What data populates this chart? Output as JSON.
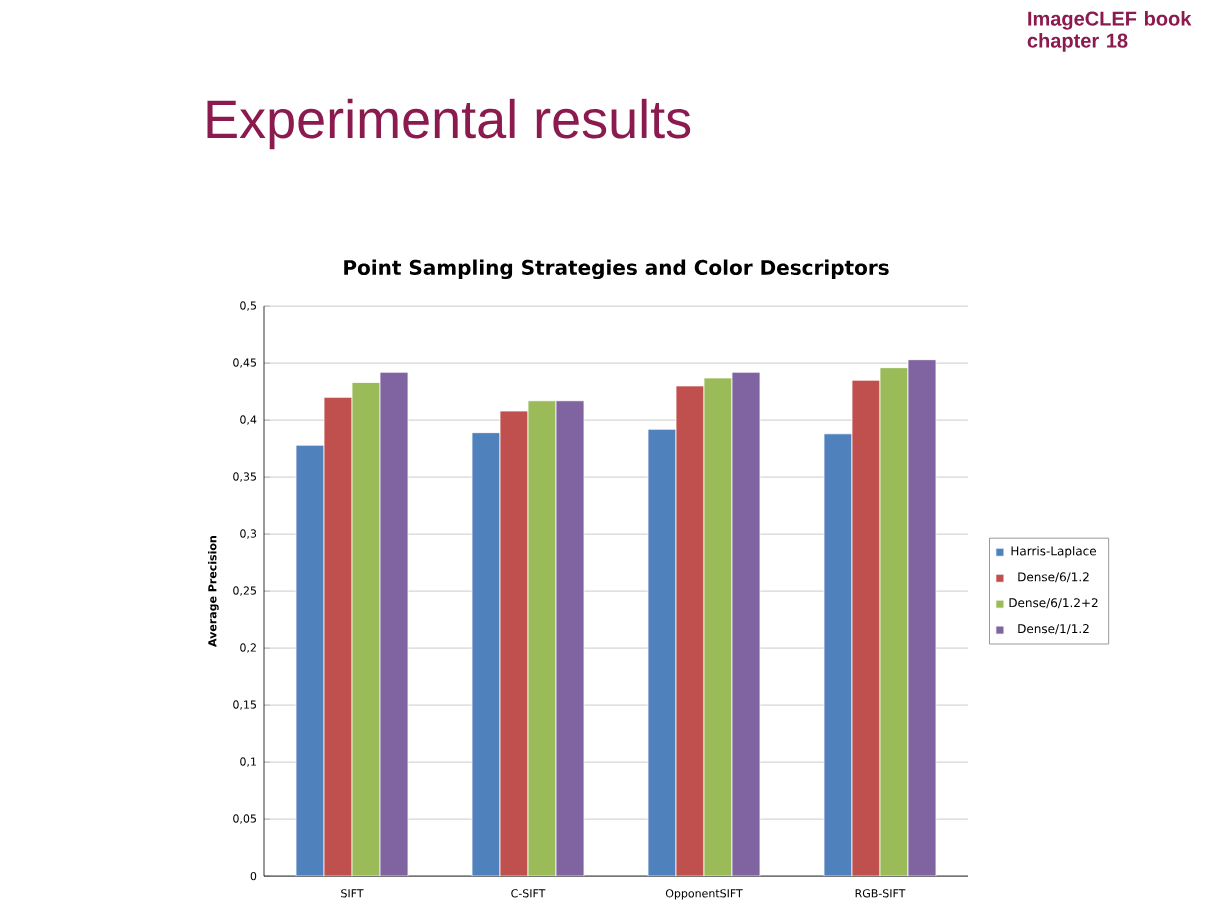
{
  "chart_data": {
    "type": "bar",
    "title": "Point Sampling Strategies and Color Descriptors",
    "ylabel": "Average Precision",
    "annotations": [
      "Experimental results",
      "ImageCLEF book chapter 18"
    ],
    "categories": [
      "SIFT",
      "C-SIFT",
      "OpponentSIFT",
      "RGB-SIFT"
    ],
    "series": [
      {
        "name": "Harris-Laplace",
        "color": "#4f81bd",
        "values": [
          0.378,
          0.389,
          0.392,
          0.388
        ]
      },
      {
        "name": "Dense/6/1.2",
        "color": "#c0504d",
        "values": [
          0.42,
          0.408,
          0.43,
          0.435
        ]
      },
      {
        "name": "Dense/6/1.2+2",
        "color": "#9bbb59",
        "values": [
          0.433,
          0.417,
          0.437,
          0.446
        ]
      },
      {
        "name": "Dense/1/1.2",
        "color": "#8064a2",
        "values": [
          0.442,
          0.417,
          0.442,
          0.453
        ]
      }
    ],
    "ylim": [
      0,
      0.5
    ],
    "yticks": [
      0,
      {
        "value": 0.05,
        "label": "0,05"
      },
      {
        "value": 0.1,
        "label": "0,1"
      },
      {
        "value": 0.15,
        "label": "0,15"
      },
      {
        "value": 0.2,
        "label": "0,2"
      },
      {
        "value": 0.25,
        "label": "0,25"
      },
      {
        "value": 0.3,
        "label": "0,3"
      },
      {
        "value": 0.35,
        "label": "0,35"
      },
      {
        "value": 0.4,
        "label": "0,4"
      },
      {
        "value": 0.45,
        "label": "0,45"
      },
      {
        "value": 0.5,
        "label": "0,5"
      }
    ],
    "grid": "y",
    "legend": "right"
  }
}
